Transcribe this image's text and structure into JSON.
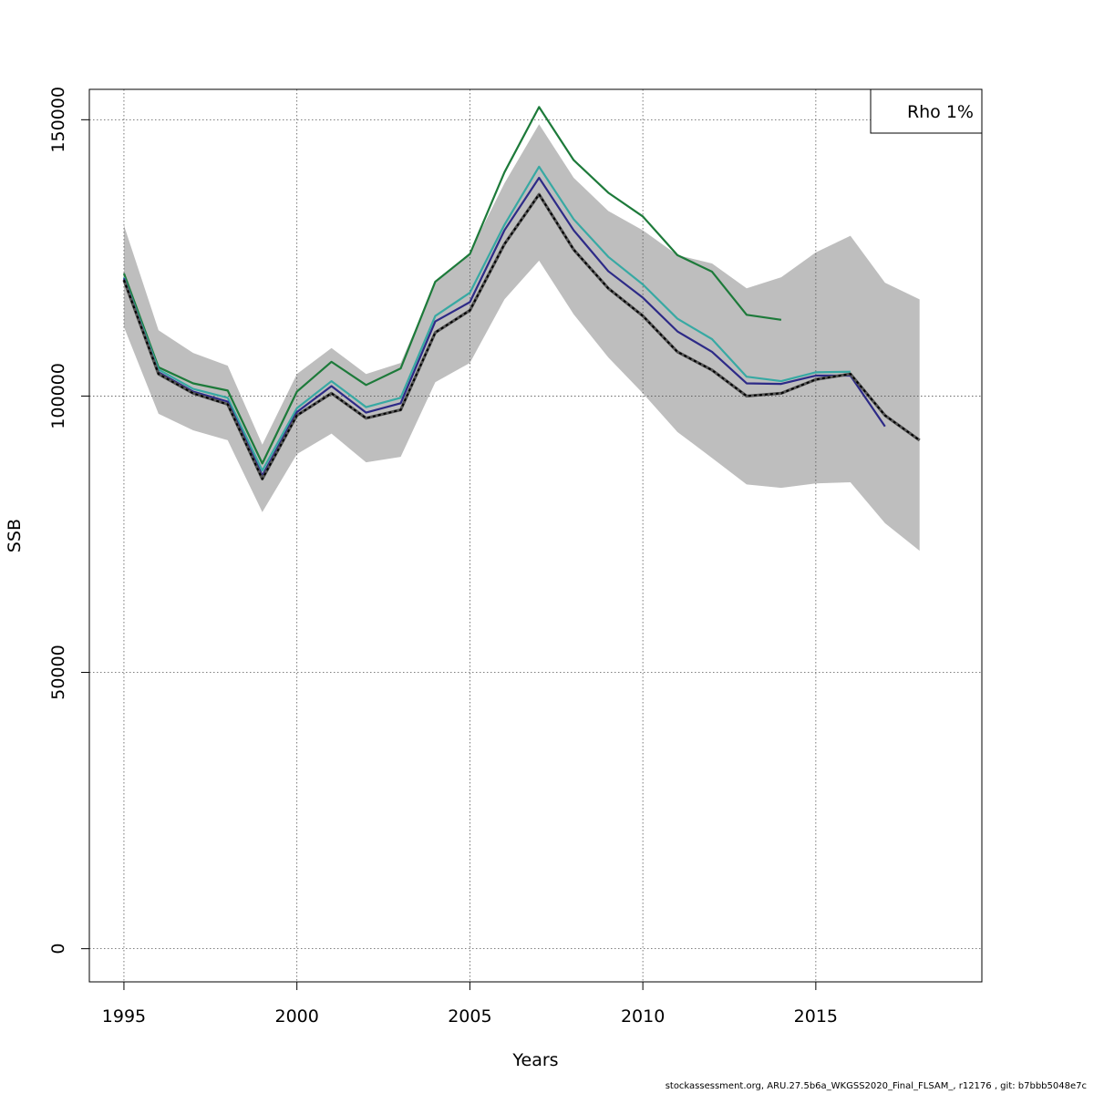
{
  "footer": "stockassessment.org, ARU.27.5b6a_WKGSS2020_Final_FLSAM_, r12176 , git: b7bbb5048e7c",
  "colors": {
    "band": "#bebebe",
    "grid": "#555555"
  },
  "chart_data": {
    "type": "line",
    "xlabel": "Years",
    "ylabel": "SSB",
    "xlim": [
      1994,
      2019.8
    ],
    "ylim": [
      -6000,
      155500
    ],
    "x_ticks": [
      1995,
      2000,
      2005,
      2010,
      2015
    ],
    "y_ticks": [
      0,
      50000,
      100000,
      150000
    ],
    "grid": true,
    "legend": {
      "position": "top-right",
      "entries": [
        "Rho 1%"
      ]
    },
    "confidence_band": {
      "x": [
        1995,
        1996,
        1997,
        1998,
        1999,
        2000,
        2001,
        2002,
        2003,
        2004,
        2005,
        2006,
        2007,
        2008,
        2009,
        2010,
        2011,
        2012,
        2013,
        2014,
        2015,
        2016,
        2017,
        2018
      ],
      "lower": [
        112500,
        96800,
        93800,
        92000,
        79000,
        89500,
        93200,
        88000,
        89000,
        102500,
        106000,
        117500,
        124500,
        114800,
        107000,
        100500,
        93500,
        88800,
        84000,
        83400,
        84200,
        84400,
        77000,
        72000
      ],
      "upper": [
        130900,
        111900,
        107800,
        105500,
        91200,
        104000,
        108700,
        104000,
        106000,
        120500,
        126000,
        138500,
        149200,
        139500,
        133500,
        130000,
        125500,
        124000,
        119500,
        121500,
        126000,
        129000,
        120500,
        117500
      ]
    },
    "series": [
      {
        "color": "#000000",
        "dashed": true,
        "x": [
          1995,
          1996,
          1997,
          1998,
          1999,
          2000,
          2001,
          2002,
          2003,
          2004,
          2005,
          2006,
          2007,
          2008,
          2009,
          2010,
          2011,
          2012,
          2013,
          2014,
          2015,
          2016,
          2017,
          2018
        ],
        "values": [
          121000,
          104000,
          100500,
          98500,
          85000,
          96500,
          100500,
          96000,
          97500,
          111500,
          115500,
          127500,
          136500,
          126500,
          119500,
          114500,
          108000,
          104700,
          100000,
          100500,
          103000,
          104000,
          96500,
          92000
        ]
      },
      {
        "color": "#1d7a3a",
        "x": [
          1995,
          1996,
          1997,
          1998,
          1999,
          2000,
          2001,
          2002,
          2003,
          2004,
          2005,
          2006,
          2007,
          2008,
          2009,
          2010,
          2011,
          2012,
          2013,
          2014
        ],
        "values": [
          122200,
          105200,
          102300,
          101000,
          87800,
          100800,
          106200,
          102000,
          105000,
          120700,
          125700,
          140500,
          152300,
          142700,
          136800,
          132500,
          125500,
          122500,
          114700,
          113800
        ]
      },
      {
        "color": "#37a9a3",
        "x": [
          1995,
          1996,
          1997,
          1998,
          1999,
          2000,
          2001,
          2002,
          2003,
          2004,
          2005,
          2006,
          2007,
          2008,
          2009,
          2010,
          2011,
          2012,
          2013,
          2014,
          2015,
          2016
        ],
        "values": [
          121500,
          104800,
          101300,
          99700,
          86500,
          97800,
          102700,
          98000,
          99700,
          114500,
          118700,
          131000,
          141500,
          132000,
          125200,
          120200,
          114000,
          110300,
          103500,
          102700,
          104300,
          104400
        ]
      },
      {
        "color": "#2d2a87",
        "x": [
          1995,
          1996,
          1997,
          1998,
          1999,
          2000,
          2001,
          2002,
          2003,
          2004,
          2005,
          2006,
          2007,
          2008,
          2009,
          2010,
          2011,
          2012,
          2013,
          2014,
          2015,
          2016,
          2017
        ],
        "values": [
          121300,
          104300,
          100800,
          99000,
          85600,
          97100,
          101800,
          97000,
          98700,
          113500,
          117000,
          130000,
          139500,
          130000,
          122600,
          117800,
          111700,
          108000,
          102300,
          102200,
          103700,
          103700,
          94500
        ]
      }
    ]
  }
}
